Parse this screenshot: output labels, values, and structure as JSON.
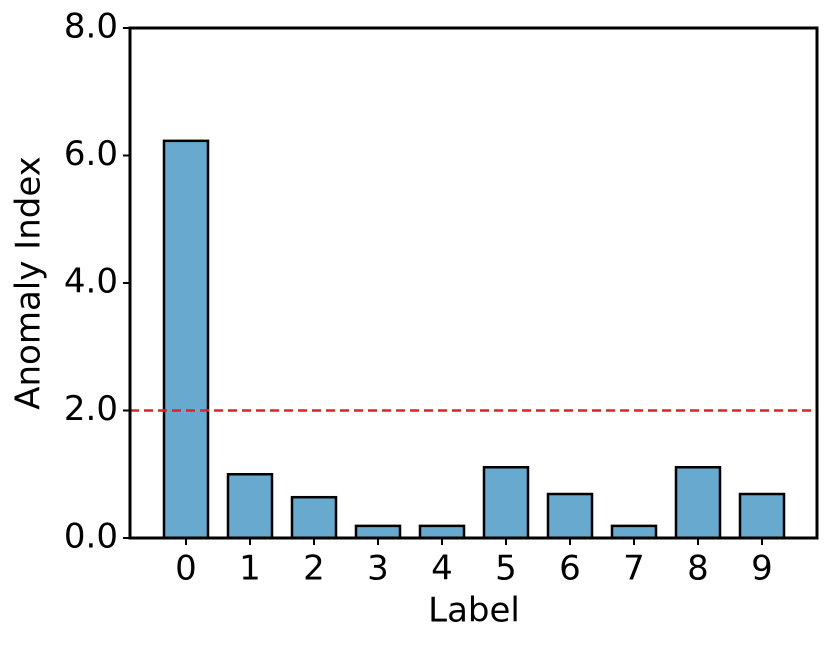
{
  "chart_data": {
    "type": "bar",
    "x_label": "Label",
    "y_label": "Anomaly Index",
    "categories": [
      "0",
      "1",
      "2",
      "3",
      "4",
      "5",
      "6",
      "7",
      "8",
      "9"
    ],
    "values": [
      6.23,
      1.0,
      0.64,
      0.19,
      0.19,
      1.11,
      0.69,
      0.19,
      1.11,
      0.69
    ],
    "color": "#67a9cf",
    "ylim": [
      0,
      8
    ],
    "yticks": [
      {
        "value": 0,
        "label": "0.0"
      },
      {
        "value": 2,
        "label": "2.0"
      },
      {
        "value": 4,
        "label": "4.0"
      },
      {
        "value": 6,
        "label": "6.0"
      },
      {
        "value": 8,
        "label": "8.0"
      }
    ],
    "threshold": 2,
    "threshold_color": "#d62728"
  }
}
